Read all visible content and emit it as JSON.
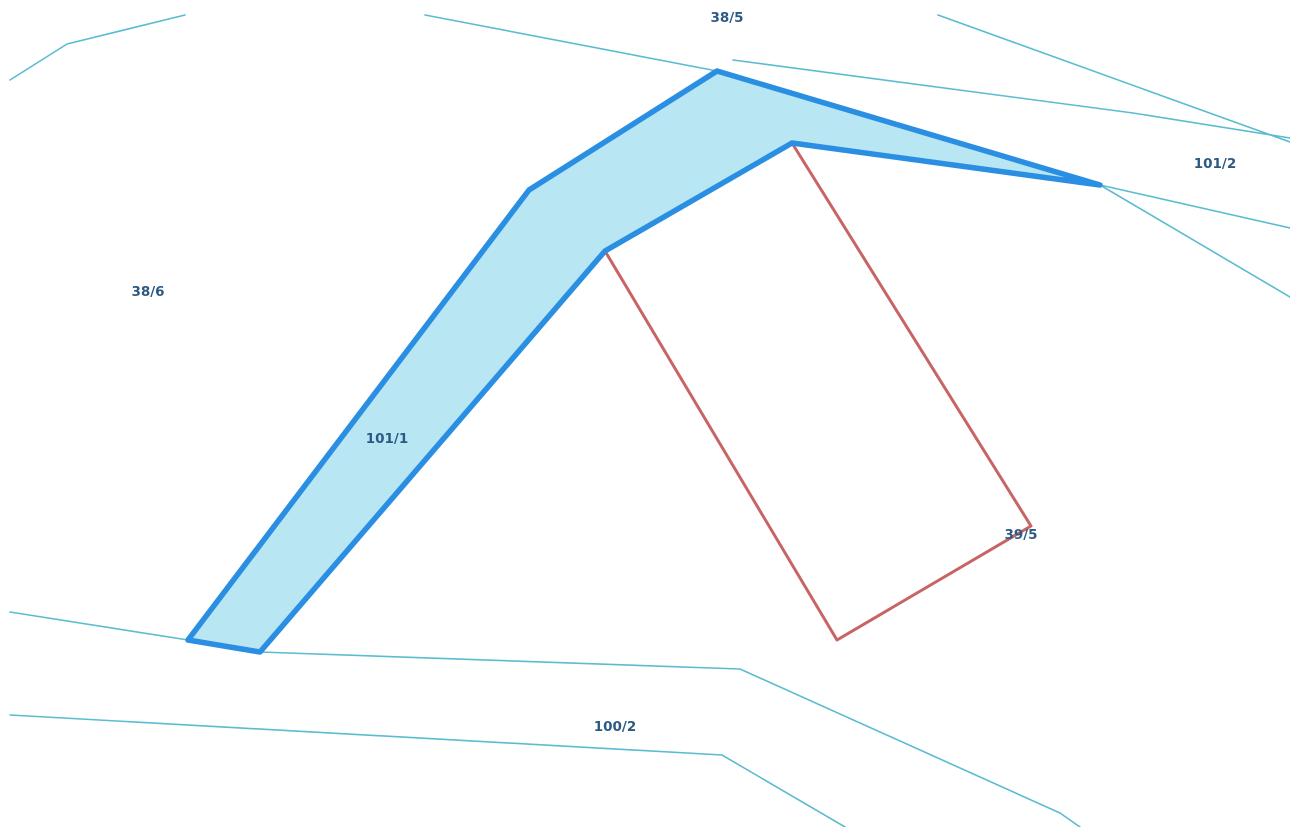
{
  "map": {
    "parcels": [
      {
        "id": "38-5",
        "label": "38/5"
      },
      {
        "id": "101-2",
        "label": "101/2"
      },
      {
        "id": "38-6",
        "label": "38/6"
      },
      {
        "id": "101-1",
        "label": "101/1",
        "selected": true
      },
      {
        "id": "39-5",
        "label": "39/5"
      },
      {
        "id": "100-2",
        "label": "100/2"
      }
    ],
    "colors": {
      "parcel_boundary": "#5bbcd0",
      "selected_fill": "#b9e6f3",
      "selected_stroke": "#2a8fe3",
      "building_outline": "#c86464",
      "label": "#2c5a85",
      "background": "#ffffff"
    }
  }
}
